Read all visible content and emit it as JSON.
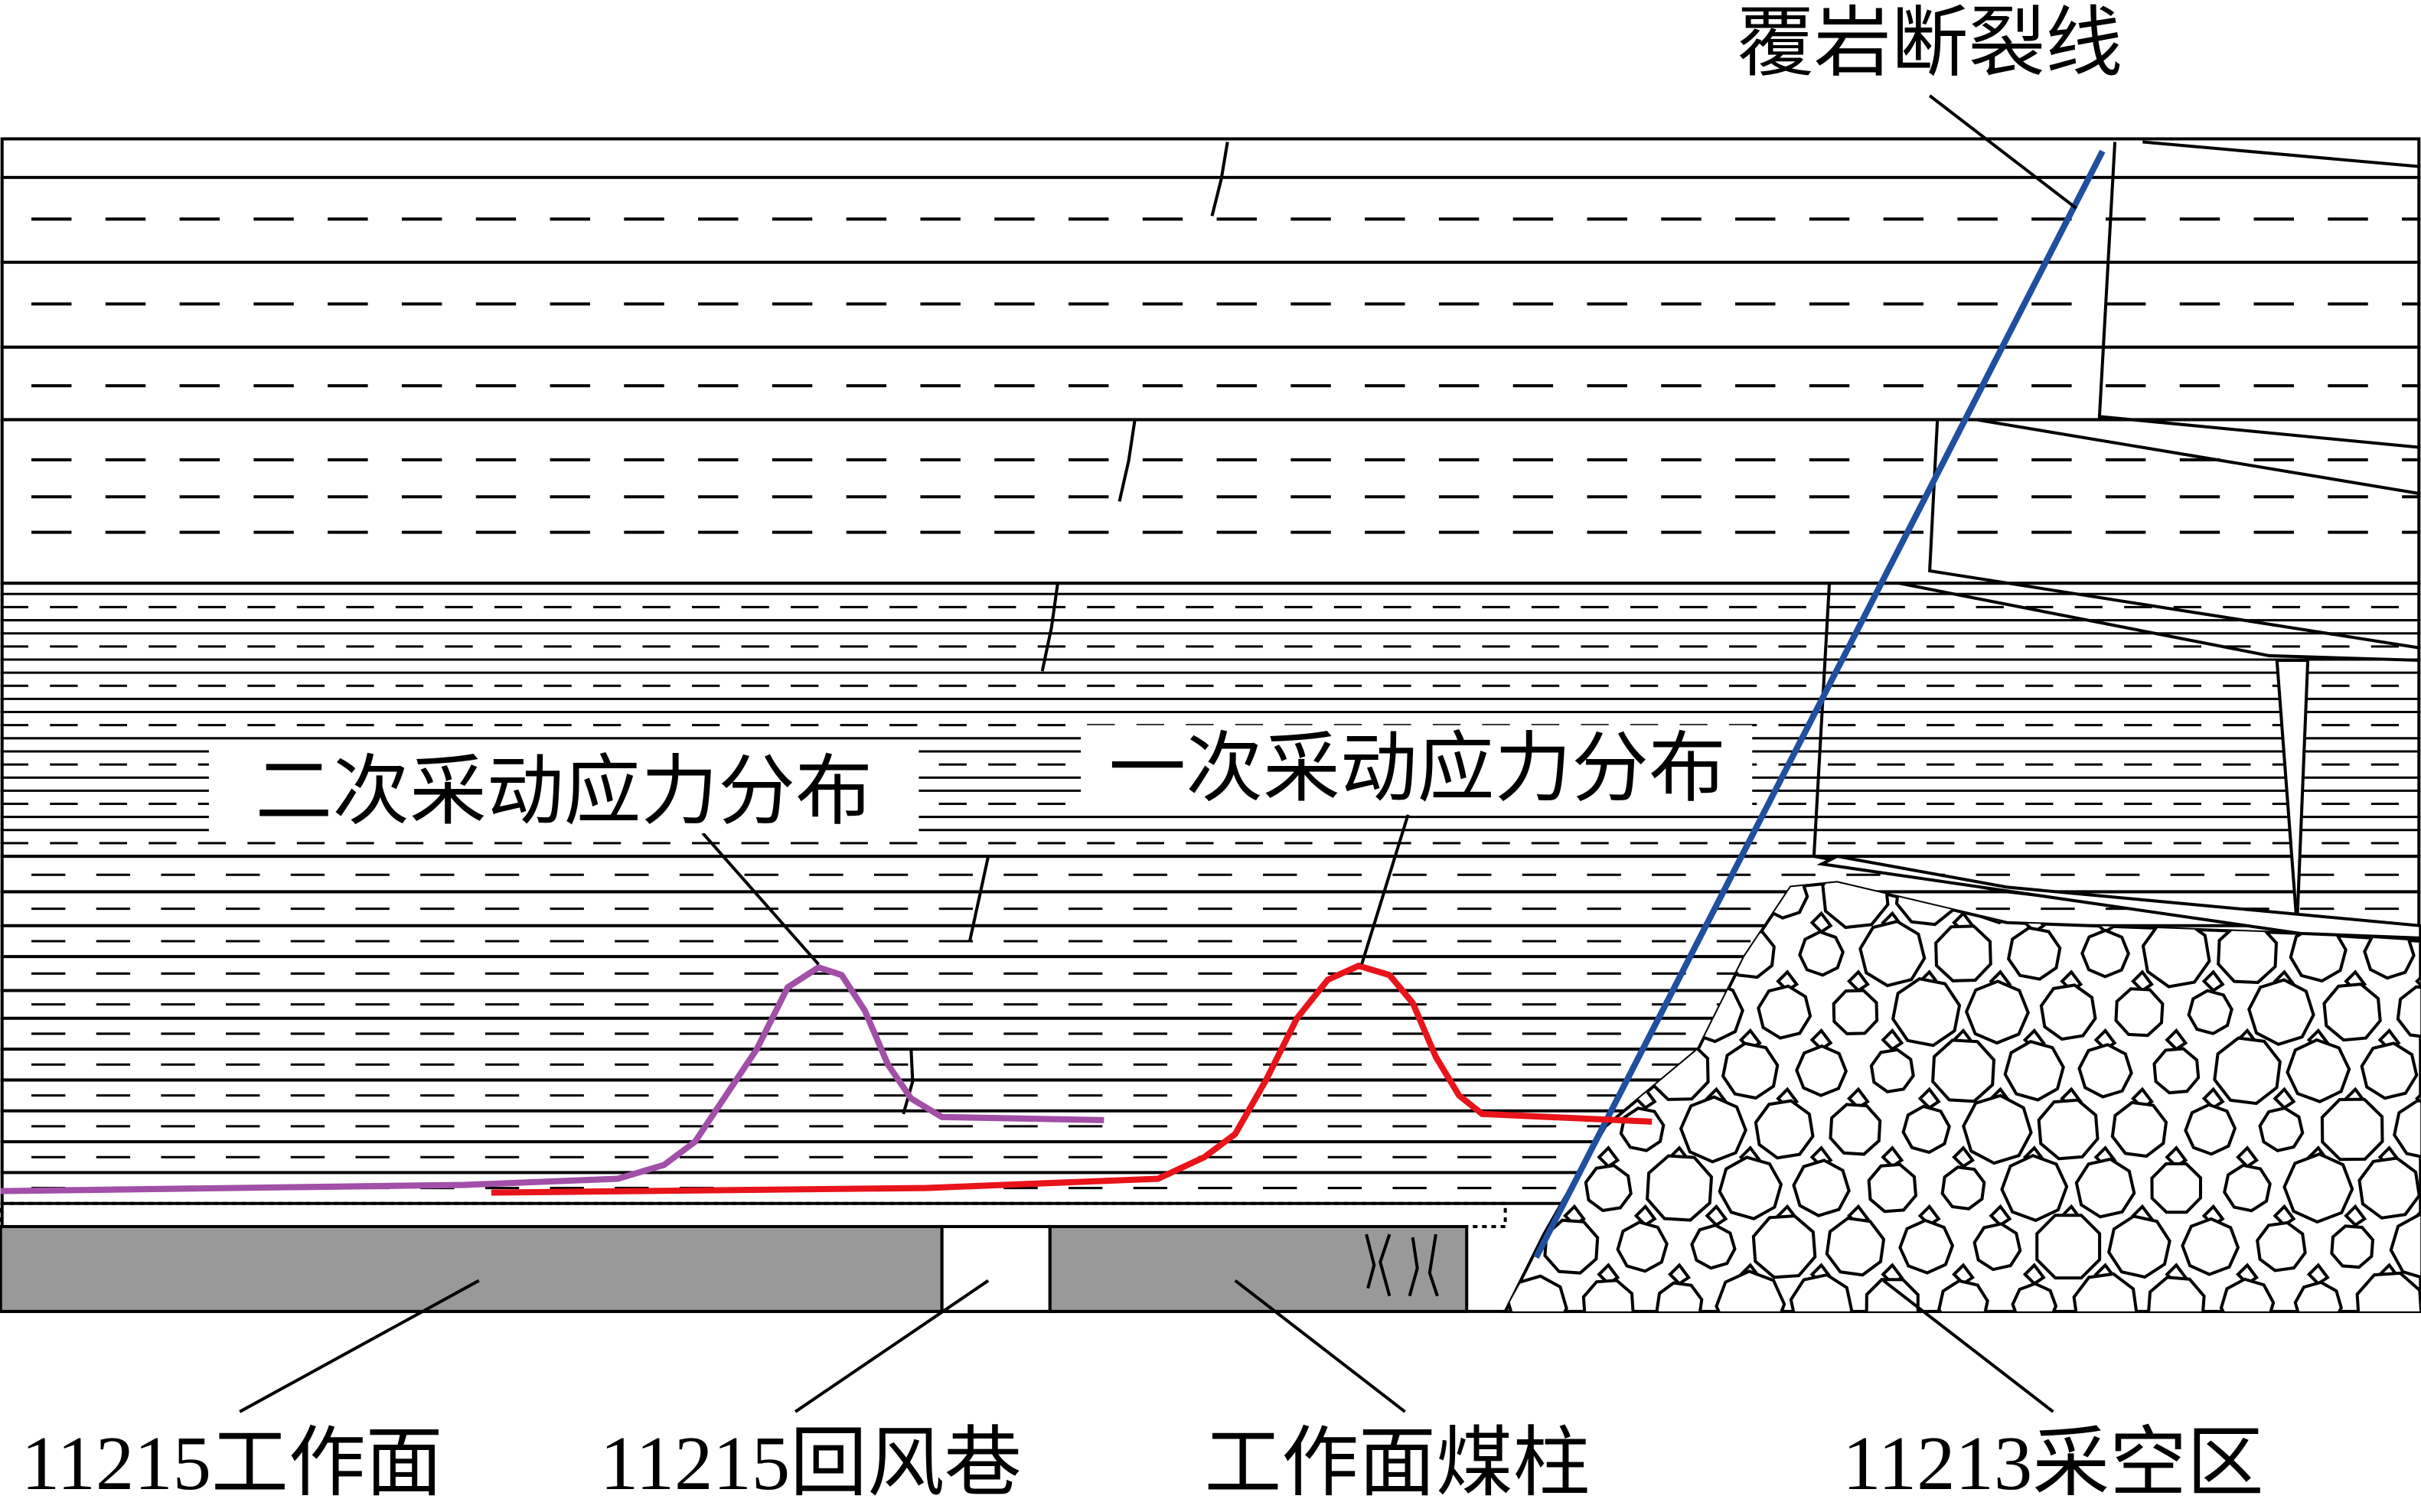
{
  "labels": {
    "fracture_line": "覆岩断裂线",
    "second_stress": "二次采动应力分布",
    "first_stress": "一次采动应力分布"
  },
  "bottom_labels": [
    "11215工作面",
    "11215回风巷",
    "工作面煤柱",
    "11213采空区"
  ]
}
